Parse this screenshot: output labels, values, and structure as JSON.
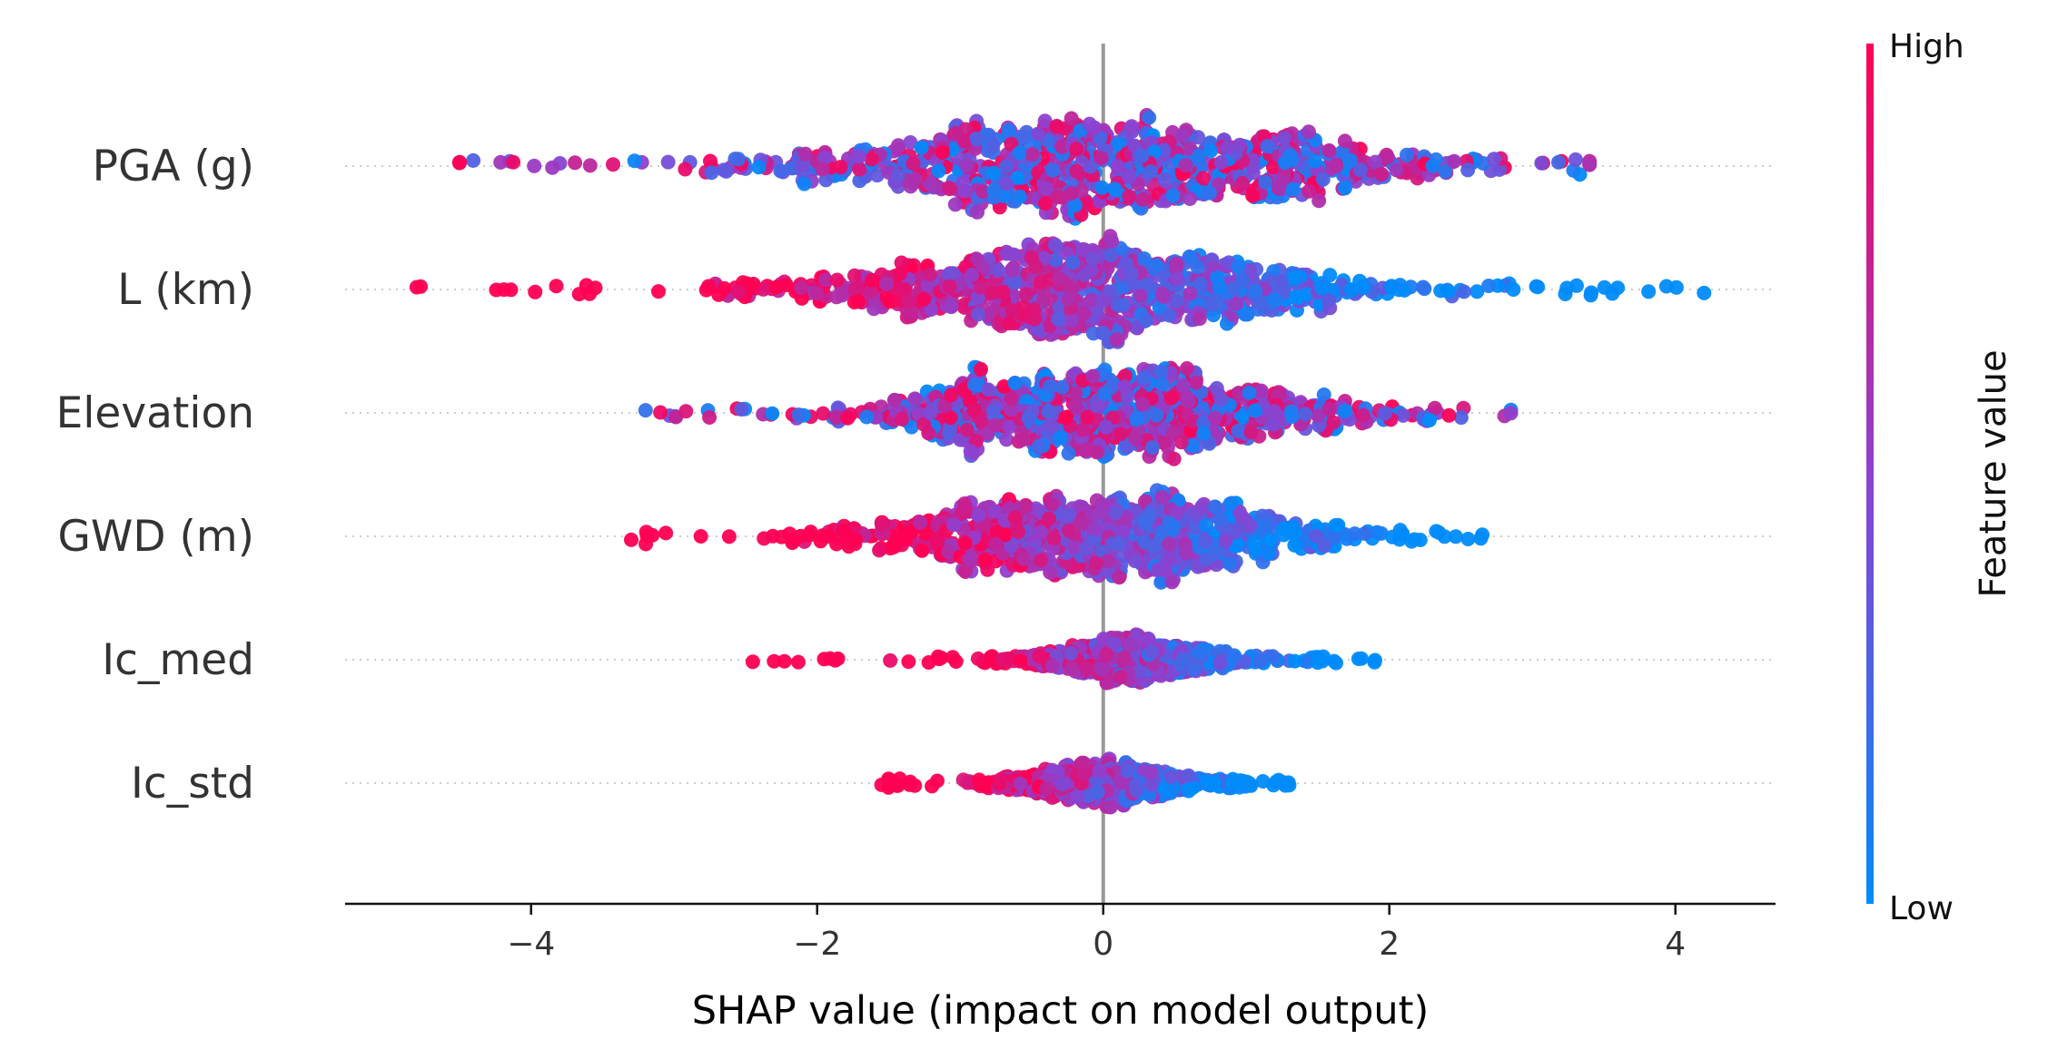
{
  "chart_data": {
    "type": "scatter",
    "subtype": "beeswarm",
    "xlabel": "SHAP value (impact on model output)",
    "xlim": [
      -5.3,
      4.7
    ],
    "xticks": [
      -4,
      -2,
      0,
      2,
      4
    ],
    "xtick_labels": [
      "−4",
      "−2",
      "0",
      "2",
      "4"
    ],
    "zero_line": 0,
    "colormap": {
      "low_color": "#008bfb",
      "mid_color": "#8e41d0",
      "high_color": "#ff0052",
      "low_label": "Low",
      "high_label": "High",
      "title": "Feature value"
    },
    "features": [
      {
        "name": "PGA (g)",
        "min": -4.5,
        "max": 3.4,
        "center": 0.0,
        "spread": 1.15,
        "low_side": "center",
        "high_side": "both"
      },
      {
        "name": "L (km)",
        "min": -4.8,
        "max": 4.2,
        "center": -0.1,
        "spread": 1.0,
        "low_side": "right",
        "high_side": "left"
      },
      {
        "name": "Elevation",
        "min": -3.2,
        "max": 2.85,
        "center": 0.05,
        "spread": 0.85,
        "low_side": "mixed",
        "high_side": "mixed"
      },
      {
        "name": "GWD (m)",
        "min": -3.3,
        "max": 2.65,
        "center": 0.0,
        "spread": 0.85,
        "low_side": "right",
        "high_side": "left"
      },
      {
        "name": "Ic_med",
        "min": -2.45,
        "max": 1.9,
        "center": 0.2,
        "spread": 0.35,
        "low_side": "center",
        "high_side": "left"
      },
      {
        "name": "Ic_std",
        "min": -1.55,
        "max": 1.3,
        "center": 0.0,
        "spread": 0.35,
        "low_side": "right",
        "high_side": "center"
      }
    ]
  }
}
